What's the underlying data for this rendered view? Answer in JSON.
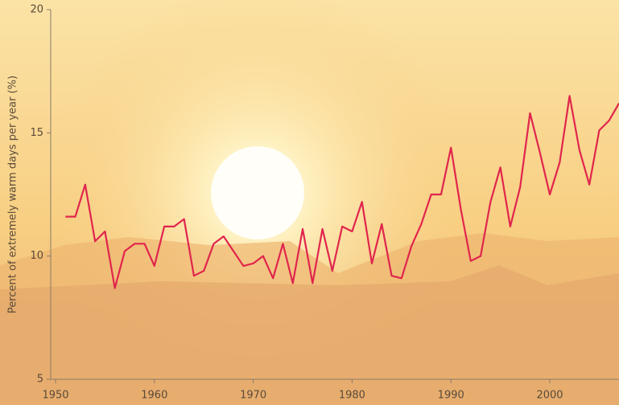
{
  "chart_data": {
    "type": "line",
    "y_label": "Percent of extremely warm days per year (%)",
    "x": [
      1951,
      1952,
      1953,
      1954,
      1955,
      1956,
      1957,
      1958,
      1959,
      1960,
      1961,
      1962,
      1963,
      1964,
      1965,
      1966,
      1967,
      1968,
      1969,
      1970,
      1971,
      1972,
      1973,
      1974,
      1975,
      1976,
      1977,
      1978,
      1979,
      1980,
      1981,
      1982,
      1983,
      1984,
      1985,
      1986,
      1987,
      1988,
      1989,
      1990,
      1991,
      1992,
      1993,
      1994,
      1995,
      1996,
      1997,
      1998,
      1999,
      2000,
      2001,
      2002,
      2003,
      2004,
      2005,
      2006,
      2007
    ],
    "series": [
      {
        "color": "#e0254d",
        "values": [
          11.6,
          11.6,
          12.9,
          10.6,
          11.0,
          8.7,
          10.2,
          10.5,
          10.5,
          9.6,
          11.2,
          11.2,
          11.5,
          9.2,
          9.4,
          10.5,
          10.8,
          10.2,
          9.6,
          9.7,
          10.0,
          9.1,
          10.5,
          8.9,
          11.1,
          8.9,
          11.1,
          9.4,
          11.2,
          11.0,
          12.2,
          9.7,
          11.3,
          9.2,
          9.1,
          10.4,
          11.3,
          12.5,
          12.5,
          14.4,
          11.9,
          9.8,
          10.0,
          12.2,
          13.6,
          11.2,
          12.8,
          15.8,
          14.2,
          12.5,
          13.8,
          16.5,
          14.3,
          12.9,
          15.1,
          15.5,
          16.2
        ]
      }
    ],
    "xlim": [
      1950,
      2007
    ],
    "xticks": [
      1950,
      1960,
      1970,
      1980,
      1990,
      2000
    ],
    "ylim": [
      5,
      20
    ],
    "yticks": [
      5,
      10,
      15,
      20
    ]
  }
}
